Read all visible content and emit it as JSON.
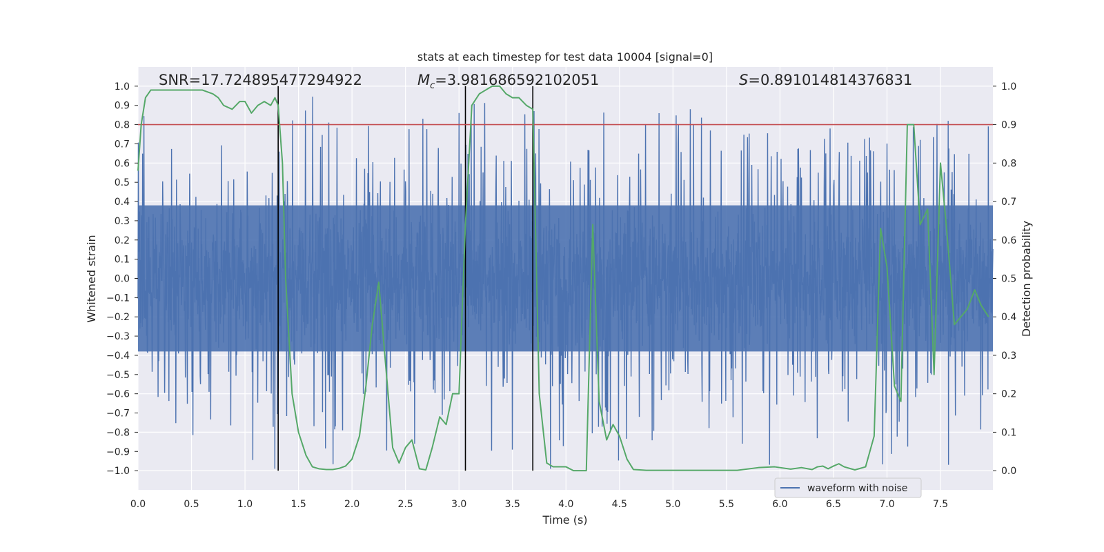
{
  "chart_data": {
    "type": "line",
    "title": "stats at each timestep for test data 10004 [signal=0]",
    "xlabel": "Time (s)",
    "ylabel": "Whitened strain",
    "y2label": "Detection probability",
    "xlim": [
      0.0,
      7.99
    ],
    "ylim": [
      -1.1,
      1.1
    ],
    "y2lim": [
      -0.05,
      1.05
    ],
    "xticks": [
      "0.0",
      "0.5",
      "1.0",
      "1.5",
      "2.0",
      "2.5",
      "3.0",
      "3.5",
      "4.0",
      "4.5",
      "5.0",
      "5.5",
      "6.0",
      "6.5",
      "7.0",
      "7.5"
    ],
    "yticks": [
      "1.0",
      "0.9",
      "0.8",
      "0.7",
      "0.6",
      "0.5",
      "0.4",
      "0.3",
      "0.2",
      "0.1",
      "0.0",
      "−0.1",
      "−0.2",
      "−0.3",
      "−0.4",
      "−0.5",
      "−0.6",
      "−0.7",
      "−0.8",
      "−0.9",
      "−1.0"
    ],
    "y2ticks": [
      "1.0",
      "0.9",
      "0.8",
      "0.7",
      "0.6",
      "0.5",
      "0.4",
      "0.3",
      "0.2",
      "0.1",
      "0.0"
    ],
    "grid": true,
    "legend_location": "lower-right",
    "annotations": {
      "snr_label": "SNR=17.724895477294922",
      "mc_symbol": "M",
      "mc_sub": "c",
      "mc_value": "=3.981686592102051",
      "s_symbol": "S",
      "s_value": "=0.891014814376831"
    },
    "threshold_y2": 0.9,
    "vertical_lines_x": [
      1.31,
      3.06,
      3.69
    ],
    "series": [
      {
        "name": "waveform with noise",
        "axis": "left",
        "color": "#4c72b0",
        "description": "dense whitened strain noise, amplitude mostly within ±0.4 with spikes to about ±0.95"
      },
      {
        "name": "detection probability",
        "axis": "right",
        "color": "#55a868",
        "x": [
          0.0,
          0.03,
          0.07,
          0.12,
          0.2,
          0.3,
          0.4,
          0.5,
          0.6,
          0.7,
          0.75,
          0.8,
          0.88,
          0.95,
          1.0,
          1.06,
          1.12,
          1.18,
          1.24,
          1.28,
          1.31,
          1.35,
          1.38,
          1.44,
          1.5,
          1.57,
          1.63,
          1.69,
          1.76,
          1.82,
          1.88,
          1.94,
          2.0,
          2.07,
          2.13,
          2.19,
          2.25,
          2.31,
          2.38,
          2.44,
          2.5,
          2.56,
          2.63,
          2.69,
          2.75,
          2.82,
          2.88,
          2.94,
          3.0,
          3.06,
          3.12,
          3.19,
          3.25,
          3.31,
          3.38,
          3.44,
          3.5,
          3.56,
          3.63,
          3.69,
          3.75,
          3.82,
          3.88,
          3.94,
          4.0,
          4.07,
          4.13,
          4.19,
          4.25,
          4.31,
          4.38,
          4.44,
          4.5,
          4.57,
          4.63,
          4.69,
          4.75,
          4.82,
          4.88,
          4.94,
          5.0,
          5.2,
          5.4,
          5.6,
          5.8,
          5.95,
          6.1,
          6.2,
          6.3,
          6.35,
          6.4,
          6.45,
          6.5,
          6.55,
          6.6,
          6.7,
          6.8,
          6.88,
          6.94,
          7.0,
          7.07,
          7.13,
          7.19,
          7.25,
          7.31,
          7.38,
          7.44,
          7.5,
          7.56,
          7.63,
          7.69,
          7.75,
          7.82,
          7.88,
          7.95
        ],
        "y": [
          0.78,
          0.9,
          0.97,
          0.99,
          0.99,
          0.99,
          0.99,
          0.99,
          0.99,
          0.98,
          0.97,
          0.95,
          0.94,
          0.96,
          0.96,
          0.93,
          0.95,
          0.96,
          0.95,
          0.97,
          0.95,
          0.8,
          0.5,
          0.2,
          0.1,
          0.04,
          0.01,
          0.005,
          0.003,
          0.003,
          0.006,
          0.012,
          0.03,
          0.09,
          0.22,
          0.38,
          0.49,
          0.29,
          0.06,
          0.02,
          0.06,
          0.08,
          0.005,
          0.002,
          0.06,
          0.14,
          0.12,
          0.2,
          0.2,
          0.64,
          0.95,
          0.98,
          0.99,
          1.0,
          1.0,
          0.98,
          0.97,
          0.97,
          0.95,
          0.94,
          0.2,
          0.02,
          0.01,
          0.01,
          0.01,
          0.0,
          0.0,
          0.0,
          0.64,
          0.18,
          0.08,
          0.12,
          0.09,
          0.03,
          0.003,
          0.002,
          0.001,
          0.001,
          0.001,
          0.001,
          0.001,
          0.001,
          0.001,
          0.001,
          0.008,
          0.01,
          0.004,
          0.008,
          0.003,
          0.01,
          0.012,
          0.005,
          0.012,
          0.018,
          0.01,
          0.002,
          0.01,
          0.09,
          0.63,
          0.53,
          0.22,
          0.18,
          0.9,
          0.9,
          0.64,
          0.68,
          0.25,
          0.8,
          0.62,
          0.38,
          0.4,
          0.42,
          0.47,
          0.43,
          0.4
        ]
      },
      {
        "name": "threshold",
        "axis": "right",
        "color": "#c44e52",
        "value": 0.9
      },
      {
        "name": "boundaries",
        "axis": "left",
        "color": "#000000",
        "x": [
          1.31,
          3.06,
          3.69
        ]
      }
    ]
  }
}
